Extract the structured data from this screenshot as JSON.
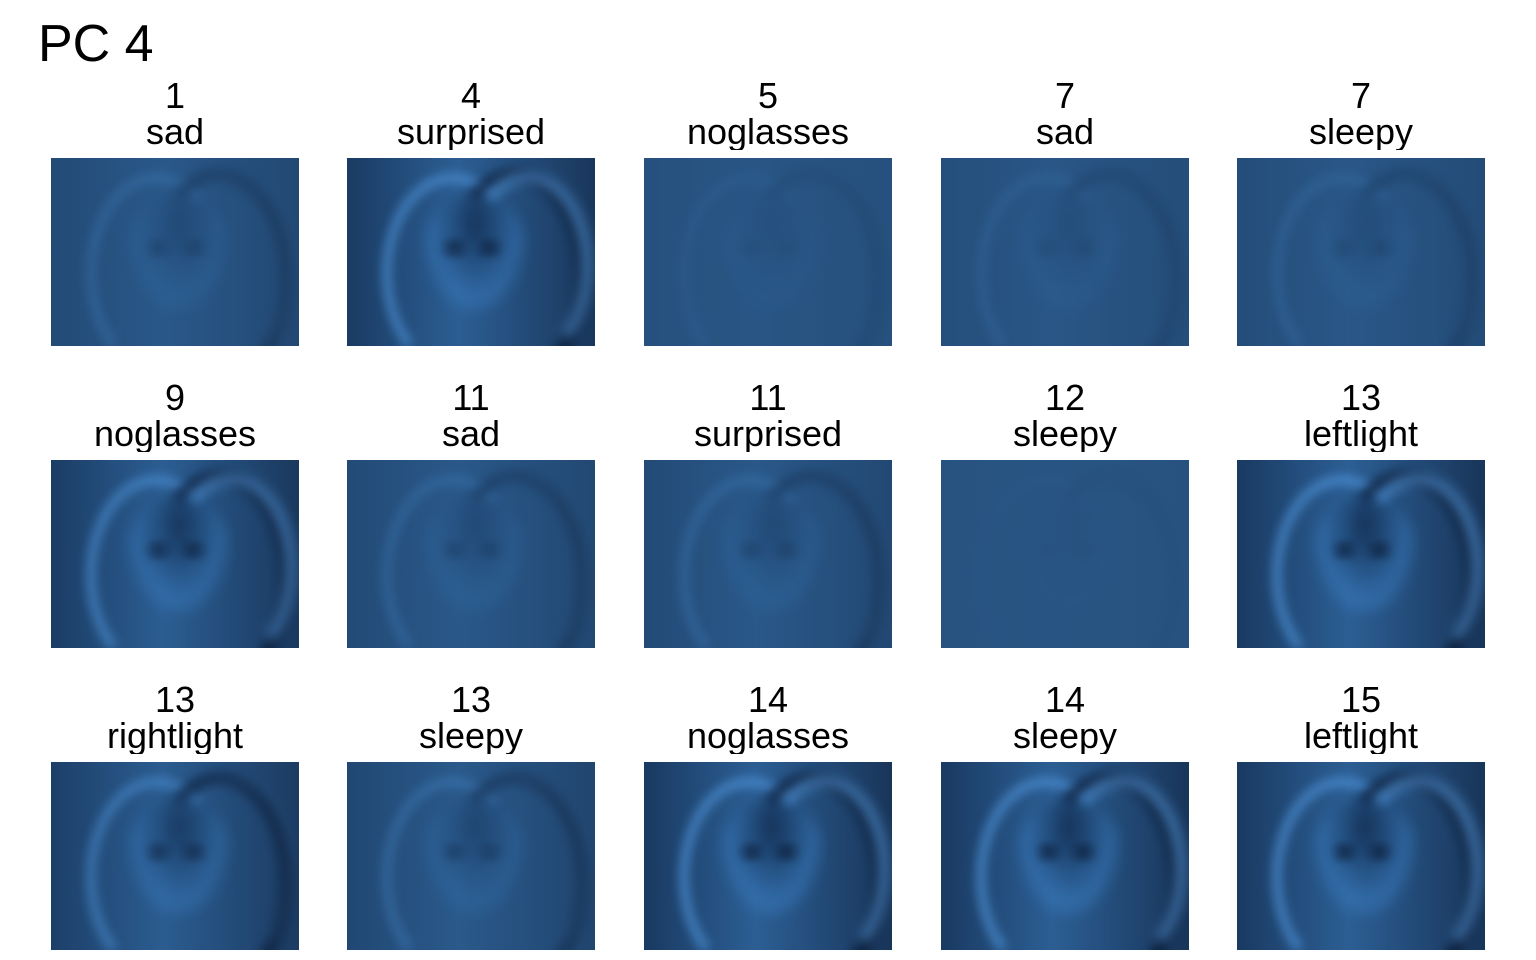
{
  "title": "PC 4",
  "image_color": "#285482",
  "panels": [
    {
      "id": "1",
      "label": "sad"
    },
    {
      "id": "4",
      "label": "surprised"
    },
    {
      "id": "5",
      "label": "noglasses"
    },
    {
      "id": "7",
      "label": "sad"
    },
    {
      "id": "7",
      "label": "sleepy"
    },
    {
      "id": "9",
      "label": "noglasses"
    },
    {
      "id": "11",
      "label": "sad"
    },
    {
      "id": "11",
      "label": "surprised"
    },
    {
      "id": "12",
      "label": "sleepy"
    },
    {
      "id": "13",
      "label": "leftlight"
    },
    {
      "id": "13",
      "label": "rightlight"
    },
    {
      "id": "13",
      "label": "sleepy"
    },
    {
      "id": "14",
      "label": "noglasses"
    },
    {
      "id": "14",
      "label": "sleepy"
    },
    {
      "id": "15",
      "label": "leftlight"
    }
  ]
}
